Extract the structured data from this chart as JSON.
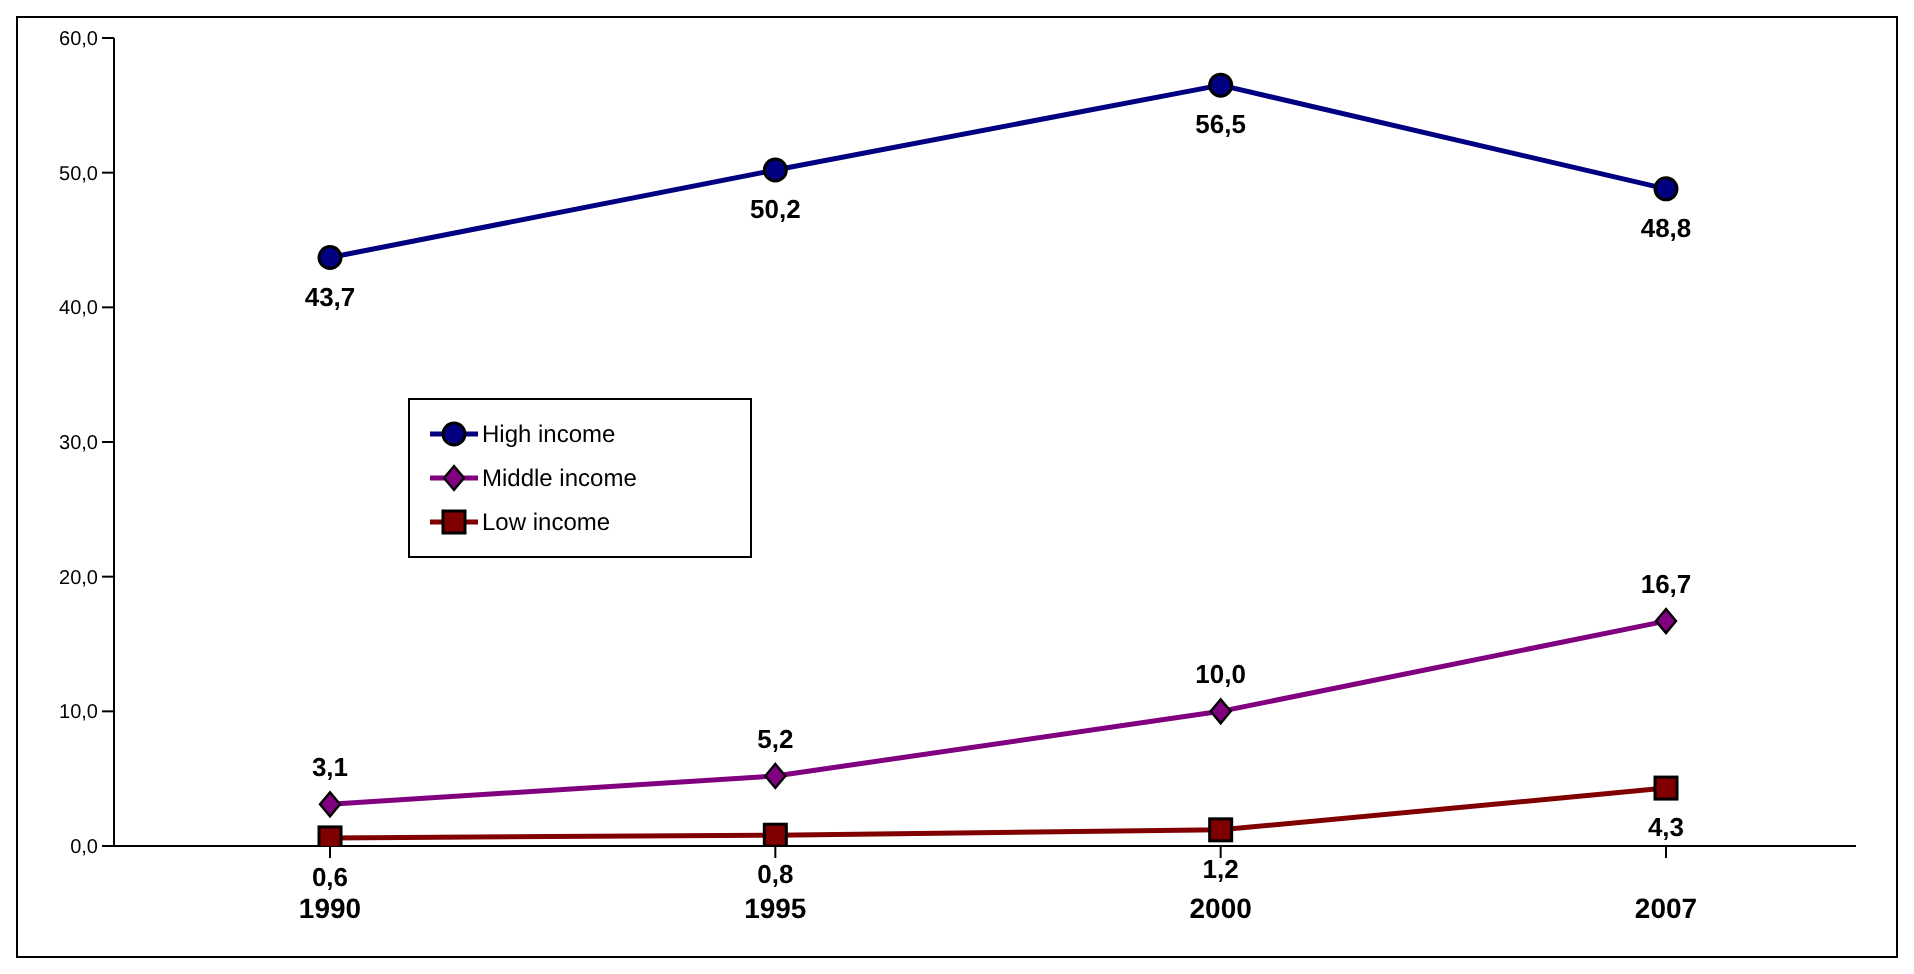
{
  "chart_data": {
    "type": "line",
    "categories": [
      "1990",
      "1995",
      "2000",
      "2007"
    ],
    "series": [
      {
        "name": "High income",
        "color": "#000080",
        "marker": "circle",
        "values": [
          43.7,
          50.2,
          56.5,
          48.8
        ],
        "value_labels": [
          "43,7",
          "50,2",
          "56,5",
          "48,8"
        ]
      },
      {
        "name": "Middle income",
        "color": "#800080",
        "marker": "diamond",
        "values": [
          3.1,
          5.2,
          10.0,
          16.7
        ],
        "value_labels": [
          "3,1",
          "5,2",
          "10,0",
          "16,7"
        ]
      },
      {
        "name": "Low income",
        "color": "#800000",
        "marker": "square",
        "values": [
          0.6,
          0.8,
          1.2,
          4.3
        ],
        "value_labels": [
          "0,6",
          "0,8",
          "1,2",
          "4,3"
        ]
      }
    ],
    "ylim": [
      0,
      60
    ],
    "yticks": [
      {
        "value": 0,
        "label": "0,0"
      },
      {
        "value": 10,
        "label": "10,0"
      },
      {
        "value": 20,
        "label": "20,0"
      },
      {
        "value": 30,
        "label": "30,0"
      },
      {
        "value": 40,
        "label": "40,0"
      },
      {
        "value": 50,
        "label": "50,0"
      },
      {
        "value": 60,
        "label": "60,0"
      }
    ],
    "grid": false,
    "legend": "left",
    "line_style": "solid"
  }
}
